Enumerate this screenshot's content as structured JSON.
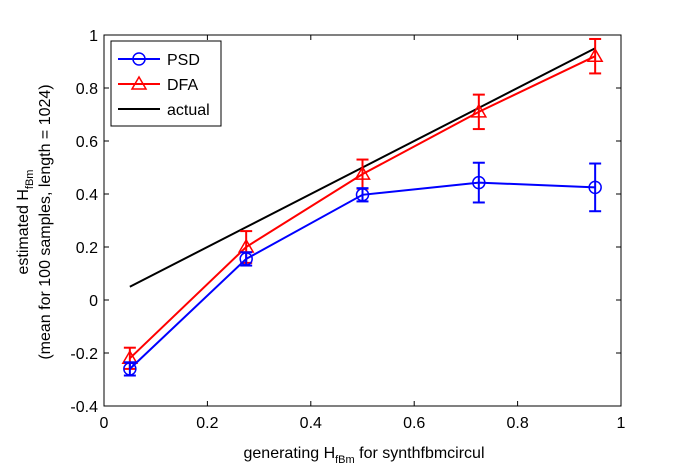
{
  "chart_data": {
    "type": "line",
    "title": "",
    "xlabel": {
      "pre": "generating H",
      "sub": "fBm",
      "post": " for synthfbmcircul"
    },
    "ylabel": {
      "line1_pre": "estimated H",
      "line1_sub": "fBm",
      "line2": "(mean for 100 samples, length = 1024)"
    },
    "xlim": [
      0,
      1
    ],
    "ylim": [
      -0.4,
      1
    ],
    "xticks": [
      0,
      0.2,
      0.4,
      0.6,
      0.8,
      1
    ],
    "xtick_labels": [
      "0",
      "0.2",
      "0.4",
      "0.6",
      "0.8",
      "1"
    ],
    "yticks": [
      -0.4,
      -0.2,
      0,
      0.2,
      0.4,
      0.6,
      0.8,
      1
    ],
    "ytick_labels": [
      "-0.4",
      "-0.2",
      "0",
      "0.2",
      "0.4",
      "0.6",
      "0.8",
      "1"
    ],
    "grid": false,
    "legend_position": "top-left",
    "x": [
      0.05,
      0.275,
      0.5,
      0.725,
      0.95
    ],
    "series": [
      {
        "name": "PSD",
        "color": "#0000ff",
        "marker": "circle",
        "values": [
          -0.26,
          0.155,
          0.397,
          0.443,
          0.425
        ],
        "errors": [
          0.025,
          0.025,
          0.025,
          0.075,
          0.09
        ]
      },
      {
        "name": "DFA",
        "color": "#ff0000",
        "marker": "triangle",
        "values": [
          -0.22,
          0.2,
          0.475,
          0.71,
          0.92
        ],
        "errors": [
          0.04,
          0.06,
          0.055,
          0.065,
          0.065
        ]
      },
      {
        "name": "actual",
        "color": "#000000",
        "marker": "none",
        "values": [
          0.05,
          0.275,
          0.5,
          0.725,
          0.95
        ]
      }
    ]
  }
}
